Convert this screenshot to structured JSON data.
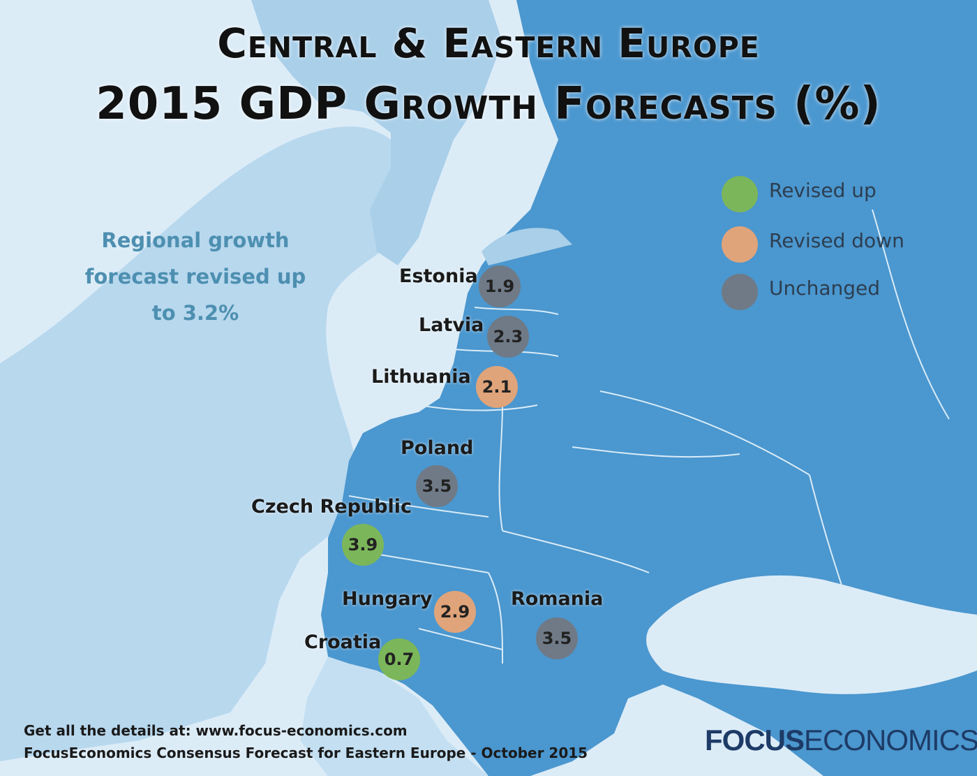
{
  "title": {
    "line1": "Central & Eastern Europe",
    "line2": "2015 GDP Growth Forecasts (%)"
  },
  "note": {
    "line1": "Regional growth",
    "line2": "forecast revised up",
    "line3": "to 3.2%"
  },
  "legend": [
    {
      "label": "Revised up",
      "color": "#7cb65a"
    },
    {
      "label": "Revised down",
      "color": "#e0a47a"
    },
    {
      "label": "Unchanged",
      "color": "#6f7a86"
    }
  ],
  "countries": [
    {
      "name": "Estonia",
      "value": "1.9",
      "status": "Unchanged"
    },
    {
      "name": "Latvia",
      "value": "2.3",
      "status": "Unchanged"
    },
    {
      "name": "Lithuania",
      "value": "2.1",
      "status": "Revised down"
    },
    {
      "name": "Poland",
      "value": "3.5",
      "status": "Unchanged"
    },
    {
      "name": "Czech Republic",
      "value": "3.9",
      "status": "Revised up"
    },
    {
      "name": "Hungary",
      "value": "2.9",
      "status": "Revised down"
    },
    {
      "name": "Romania",
      "value": "3.5",
      "status": "Unchanged"
    },
    {
      "name": "Croatia",
      "value": "0.7",
      "status": "Revised up"
    }
  ],
  "colors": {
    "sea": "#dcecf7",
    "land_europe": "#4b97cf",
    "land_west": "#b8d8ee",
    "border": "#d9ecf8"
  },
  "footer": {
    "line1": "Get all the details at: www.focus-economics.com",
    "line2": "FocusEconomics Consensus Forecast for Eastern Europe - October 2015"
  },
  "logo": {
    "bold": "FOCUS",
    "regular": "ECONOMICS"
  }
}
